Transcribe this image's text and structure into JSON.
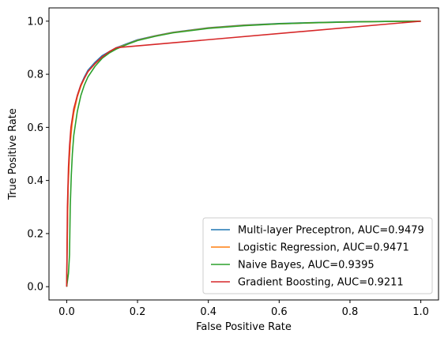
{
  "chart_data": {
    "type": "line",
    "xlabel": "False Positive Rate",
    "ylabel": "True Positive Rate",
    "xlim": [
      -0.05,
      1.05
    ],
    "ylim": [
      -0.05,
      1.05
    ],
    "xticks": [
      0.0,
      0.2,
      0.4,
      0.6,
      0.8,
      1.0
    ],
    "yticks": [
      0.0,
      0.2,
      0.4,
      0.6,
      0.8,
      1.0
    ],
    "xtick_labels": [
      "0.0",
      "0.2",
      "0.4",
      "0.6",
      "0.8",
      "1.0"
    ],
    "ytick_labels": [
      "0.0",
      "0.2",
      "0.4",
      "0.6",
      "0.8",
      "1.0"
    ],
    "grid": false,
    "legend_position": "bottom-right",
    "series": [
      {
        "name": "Multi-layer Preceptron, AUC=0.9479",
        "color": "#1f77b4",
        "x": [
          0,
          0.002,
          0.004,
          0.007,
          0.01,
          0.015,
          0.02,
          0.03,
          0.04,
          0.05,
          0.06,
          0.08,
          0.1,
          0.12,
          0.14,
          0.17,
          0.2,
          0.25,
          0.3,
          0.4,
          0.5,
          0.6,
          0.7,
          0.8,
          0.9,
          1.0
        ],
        "y": [
          0,
          0.22,
          0.38,
          0.48,
          0.55,
          0.62,
          0.66,
          0.72,
          0.76,
          0.79,
          0.815,
          0.845,
          0.87,
          0.885,
          0.9,
          0.915,
          0.93,
          0.945,
          0.958,
          0.975,
          0.985,
          0.991,
          0.995,
          0.998,
          0.999,
          1.0
        ]
      },
      {
        "name": "Logistic Regression, AUC=0.9471",
        "color": "#ff7f0e",
        "x": [
          0,
          0.002,
          0.004,
          0.007,
          0.01,
          0.015,
          0.02,
          0.03,
          0.04,
          0.05,
          0.06,
          0.08,
          0.1,
          0.12,
          0.14,
          0.17,
          0.2,
          0.25,
          0.3,
          0.4,
          0.5,
          0.6,
          0.7,
          0.8,
          0.9,
          1.0
        ],
        "y": [
          0,
          0.21,
          0.37,
          0.47,
          0.54,
          0.61,
          0.655,
          0.715,
          0.755,
          0.785,
          0.81,
          0.84,
          0.865,
          0.882,
          0.898,
          0.913,
          0.928,
          0.944,
          0.957,
          0.974,
          0.984,
          0.99,
          0.994,
          0.997,
          0.999,
          1.0
        ]
      },
      {
        "name": "Naive Bayes, AUC=0.9395",
        "color": "#2ca02c",
        "x": [
          0,
          0.005,
          0.008,
          0.01,
          0.013,
          0.016,
          0.02,
          0.03,
          0.04,
          0.05,
          0.06,
          0.08,
          0.1,
          0.12,
          0.14,
          0.17,
          0.2,
          0.25,
          0.3,
          0.4,
          0.5,
          0.6,
          0.7,
          0.8,
          0.9,
          1.0
        ],
        "y": [
          0,
          0.05,
          0.12,
          0.3,
          0.42,
          0.5,
          0.57,
          0.66,
          0.72,
          0.76,
          0.79,
          0.83,
          0.86,
          0.88,
          0.895,
          0.912,
          0.927,
          0.943,
          0.956,
          0.973,
          0.983,
          0.99,
          0.994,
          0.997,
          0.999,
          1.0
        ]
      },
      {
        "name": "Gradient Boosting, AUC=0.9211",
        "color": "#d62728",
        "x": [
          0,
          0.002,
          0.005,
          0.008,
          0.012,
          0.02,
          0.03,
          0.04,
          0.06,
          0.08,
          0.1,
          0.12,
          0.14,
          1.0
        ],
        "y": [
          0,
          0.3,
          0.45,
          0.53,
          0.6,
          0.67,
          0.72,
          0.76,
          0.81,
          0.84,
          0.865,
          0.885,
          0.9,
          1.0
        ]
      }
    ]
  }
}
